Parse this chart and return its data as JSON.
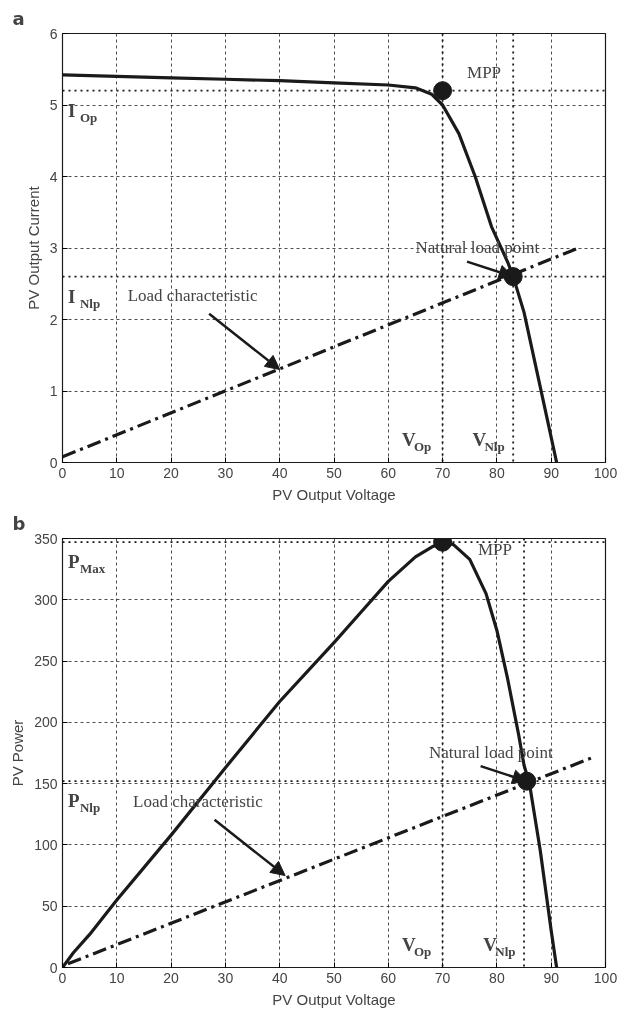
{
  "chart_data": [
    {
      "type": "line",
      "title": "a",
      "xlabel": "PV Output Voltage",
      "ylabel": "PV Output Current",
      "xlim": [
        0,
        100
      ],
      "ylim": [
        0,
        6
      ],
      "xticks": [
        0,
        10,
        20,
        30,
        40,
        50,
        60,
        70,
        80,
        90,
        100
      ],
      "yticks": [
        0,
        1,
        2,
        3,
        4,
        5,
        6
      ],
      "grid": true,
      "marker": "none",
      "series": [
        {
          "type": "line",
          "color": "#1a1a1a",
          "line_style": "solid",
          "x": [
            0,
            10,
            20,
            30,
            40,
            50,
            60,
            65,
            68,
            70,
            73,
            76,
            79,
            82,
            83,
            85,
            87,
            89,
            91
          ],
          "values": [
            5.42,
            5.4,
            5.38,
            5.36,
            5.34,
            5.31,
            5.28,
            5.24,
            5.15,
            5.0,
            4.6,
            4.0,
            3.3,
            2.8,
            2.6,
            2.1,
            1.4,
            0.7,
            0
          ]
        },
        {
          "type": "line",
          "color": "#1a1a1a",
          "line_style": "dashdot",
          "x": [
            0,
            95
          ],
          "values": [
            0.08,
            3.0
          ]
        },
        {
          "type": "scatter",
          "color": "#1a1a1a",
          "marker": "circle",
          "x": [
            70,
            83
          ],
          "values": [
            5.2,
            2.6
          ]
        }
      ],
      "ref_lines": [
        {
          "axis": "y",
          "value": 5.2,
          "color": "#1a1a1a",
          "line_style": "dotted"
        },
        {
          "axis": "x",
          "value": 70,
          "color": "#1a1a1a",
          "line_style": "dotted"
        },
        {
          "axis": "y",
          "value": 2.6,
          "color": "#1a1a1a",
          "line_style": "dotted"
        },
        {
          "axis": "x",
          "value": 83,
          "color": "#1a1a1a",
          "line_style": "dotted"
        }
      ],
      "annotations": [
        {
          "text": "MPP",
          "x": 70,
          "y": 5.2
        },
        {
          "text": "Natural load point",
          "x": 83,
          "y": 2.6
        },
        {
          "text": "Load characteristic",
          "x": 40,
          "y": 1.3
        },
        {
          "text": "I$_{Op}$",
          "x": 0,
          "y": 5.2
        },
        {
          "text": "I$_{Nlp}$",
          "x": 0,
          "y": 2.6
        },
        {
          "text": "V$_{Op}$",
          "x": 70,
          "y": 0
        },
        {
          "text": "V$_{Nlp}$",
          "x": 83,
          "y": 0
        }
      ]
    },
    {
      "type": "line",
      "title": "b",
      "xlabel": "PV Output Voltage",
      "ylabel": "PV Power",
      "xlim": [
        0,
        100
      ],
      "ylim": [
        0,
        350
      ],
      "xticks": [
        0,
        10,
        20,
        30,
        40,
        50,
        60,
        70,
        80,
        90,
        100
      ],
      "yticks": [
        0,
        50,
        100,
        150,
        200,
        250,
        300,
        350
      ],
      "grid": true,
      "marker": "none",
      "series": [
        {
          "type": "line",
          "color": "#1a1a1a",
          "line_style": "solid",
          "x": [
            0,
            2,
            5,
            10,
            20,
            30,
            40,
            50,
            55,
            60,
            65,
            68,
            70,
            72,
            75,
            78,
            80,
            82,
            84,
            85,
            86,
            88,
            90,
            91
          ],
          "values": [
            0,
            12,
            27,
            55,
            108,
            163,
            217,
            265,
            290,
            315,
            335,
            343,
            347,
            345,
            333,
            305,
            275,
            235,
            190,
            165,
            150,
            95,
            30,
            0
          ]
        },
        {
          "type": "line",
          "color": "#1a1a1a",
          "line_style": "dashdot",
          "x": [
            1,
            98
          ],
          "values": [
            3,
            172
          ]
        },
        {
          "type": "scatter",
          "color": "#1a1a1a",
          "marker": "circle",
          "x": [
            70,
            85.5
          ],
          "values": [
            347,
            152
          ]
        }
      ],
      "ref_lines": [
        {
          "axis": "y",
          "value": 347,
          "color": "#1a1a1a",
          "line_style": "dotted"
        },
        {
          "axis": "x",
          "value": 70,
          "color": "#1a1a1a",
          "line_style": "dotted"
        },
        {
          "axis": "y",
          "value": 152,
          "color": "#1a1a1a",
          "line_style": "dotted"
        },
        {
          "axis": "x",
          "value": 85,
          "color": "#1a1a1a",
          "line_style": "dotted"
        }
      ],
      "annotations": [
        {
          "text": "MPP",
          "x": 70,
          "y": 347
        },
        {
          "text": "Natural load point",
          "x": 85.5,
          "y": 152
        },
        {
          "text": "Load characteristic",
          "x": 41,
          "y": 75
        },
        {
          "text": "P$_{Max}$",
          "x": 0,
          "y": 347
        },
        {
          "text": "P$_{Nlp}$",
          "x": 0,
          "y": 152
        },
        {
          "text": "V$_{Op}$",
          "x": 70,
          "y": 0
        },
        {
          "text": "V$_{Nlp}$",
          "x": 85,
          "y": 0
        }
      ]
    }
  ]
}
